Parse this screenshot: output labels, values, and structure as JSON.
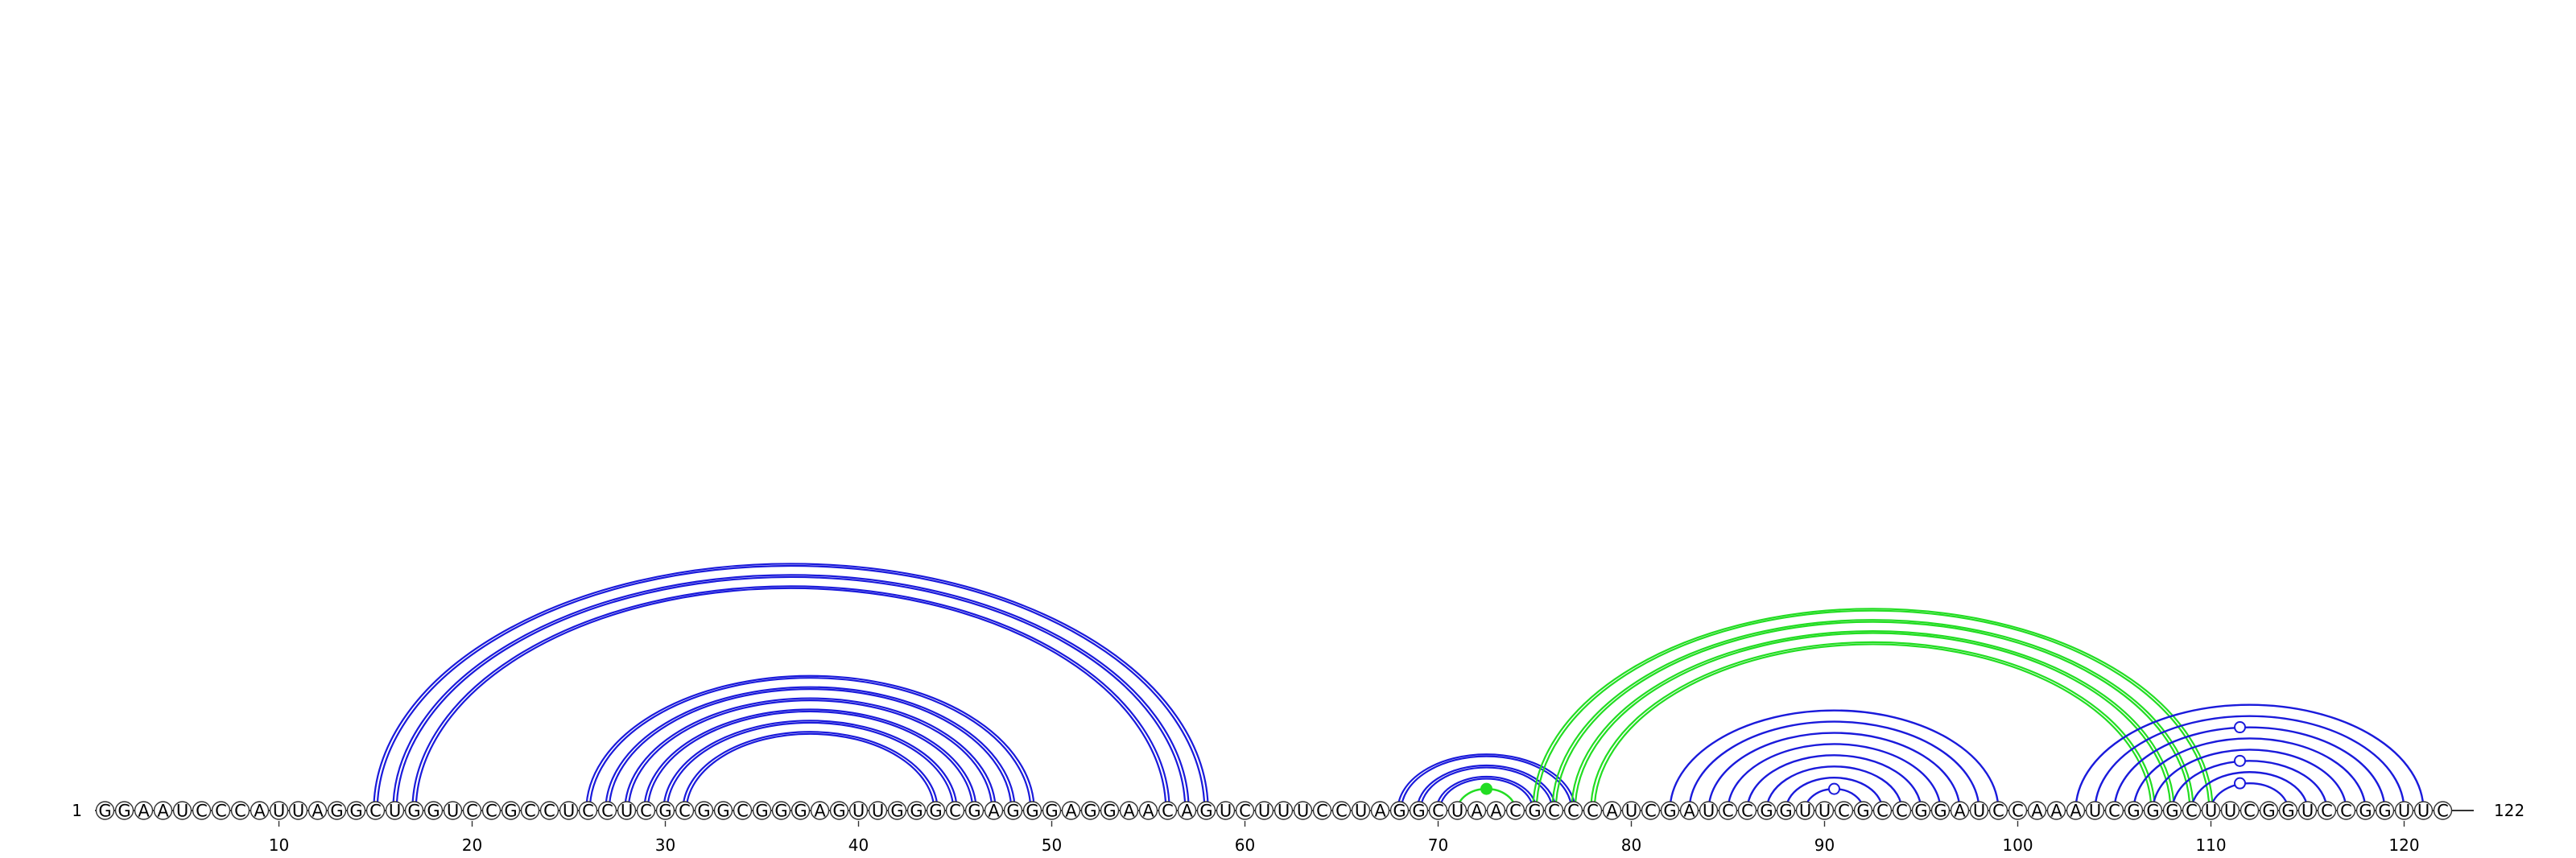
{
  "sequence": "GGAAUCCCAUUAGGCUGGUCCGCCUCCUCGCGGCGGGAGUUGGGCGAGGGAGGAACAGUCUUUCCUAGGCUAACGCCCAUCGAUCCGGUUCGCCGGAUCCAAAUCGGGCUUCGGUCCGGUUC",
  "start_label": "1",
  "end_label": "122",
  "ticks": [
    "10",
    "20",
    "30",
    "40",
    "50",
    "60",
    "70",
    "80",
    "90",
    "100",
    "110",
    "120"
  ],
  "colors": {
    "blue": "#1a1adb",
    "green": "#22dd22",
    "outline": "#333333"
  },
  "arc_groups": [
    {
      "name": "helix-15-58",
      "color": "blue",
      "style": "double",
      "pairs": [
        [
          15,
          58
        ],
        [
          16,
          57
        ],
        [
          17,
          56
        ]
      ]
    },
    {
      "name": "helix-26-49",
      "color": "blue",
      "style": "double",
      "pairs": [
        [
          26,
          49
        ],
        [
          27,
          48
        ],
        [
          28,
          47
        ],
        [
          29,
          46
        ],
        [
          30,
          45
        ],
        [
          31,
          44
        ]
      ]
    },
    {
      "name": "helix-68-77",
      "color": "blue",
      "style": "double",
      "pairs": [
        [
          68,
          77
        ],
        [
          69,
          76
        ],
        [
          70,
          75
        ]
      ]
    },
    {
      "name": "hairpin-71-74",
      "color": "green",
      "style": "single",
      "pairs": [
        [
          71,
          74
        ]
      ]
    },
    {
      "name": "pseudoknot-75-110",
      "color": "green",
      "style": "double",
      "pairs": [
        [
          75,
          110
        ],
        [
          76,
          109
        ],
        [
          77,
          108
        ],
        [
          78,
          107
        ]
      ]
    },
    {
      "name": "helix-82-99",
      "color": "blue",
      "style": "single",
      "pairs": [
        [
          82,
          99
        ],
        [
          83,
          98
        ],
        [
          84,
          97
        ],
        [
          85,
          96
        ],
        [
          86,
          95
        ],
        [
          87,
          94
        ],
        [
          88,
          93
        ],
        [
          89,
          92
        ]
      ]
    },
    {
      "name": "helix-103-121",
      "color": "blue",
      "style": "single",
      "pairs": [
        [
          103,
          121
        ],
        [
          104,
          120
        ],
        [
          105,
          119
        ],
        [
          106,
          118
        ],
        [
          107,
          117
        ],
        [
          108,
          116
        ],
        [
          109,
          115
        ],
        [
          110,
          114
        ]
      ]
    }
  ],
  "markers": [
    {
      "name": "hairpin-71-74",
      "pos": 72.5,
      "arc": [
        71,
        74
      ],
      "color": "green",
      "filled": true
    },
    {
      "name": "hairpin-89-92",
      "pos": 90.5,
      "arc": [
        89,
        92
      ],
      "color": "blue",
      "filled": false
    },
    {
      "name": "hairpin-110-114",
      "pos": 111.5,
      "arc": [
        110,
        114
      ],
      "color": "blue",
      "filled": false
    },
    {
      "name": "hairpin-108-116",
      "pos": 111.5,
      "arc": [
        108,
        116
      ],
      "color": "blue",
      "filled": false
    },
    {
      "name": "hairpin-105-119",
      "pos": 111.5,
      "arc": [
        105,
        119
      ],
      "color": "blue",
      "filled": false
    }
  ]
}
